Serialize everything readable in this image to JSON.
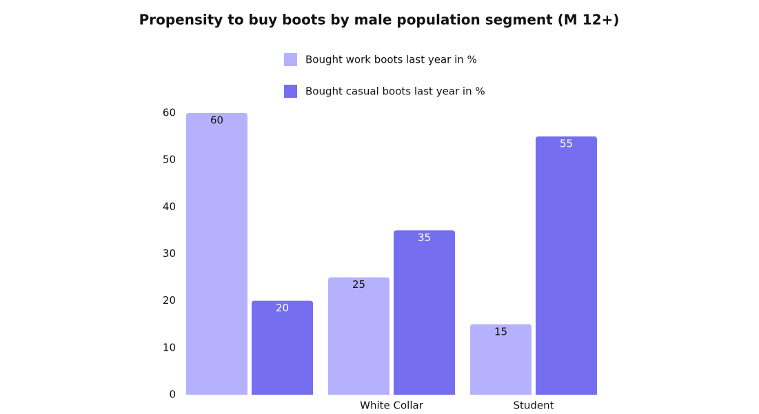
{
  "chart_data": {
    "type": "bar",
    "title": "Propensity to buy boots by male population segment (M 12+)",
    "categories": [
      null,
      "White Collar",
      "Student"
    ],
    "series": [
      {
        "name": "Bought work boots last year in %",
        "color": "#b5b1fd",
        "label_color": "#111111",
        "values": [
          60,
          25,
          15
        ]
      },
      {
        "name": "Bought casual boots last year in %",
        "color": "#756ef0",
        "label_color": "#ffffff",
        "values": [
          20,
          35,
          55
        ]
      }
    ],
    "ylim": [
      0,
      60
    ],
    "yticks": [
      0,
      10,
      20,
      30,
      40,
      50,
      60
    ],
    "grid": false,
    "legend": "top"
  }
}
